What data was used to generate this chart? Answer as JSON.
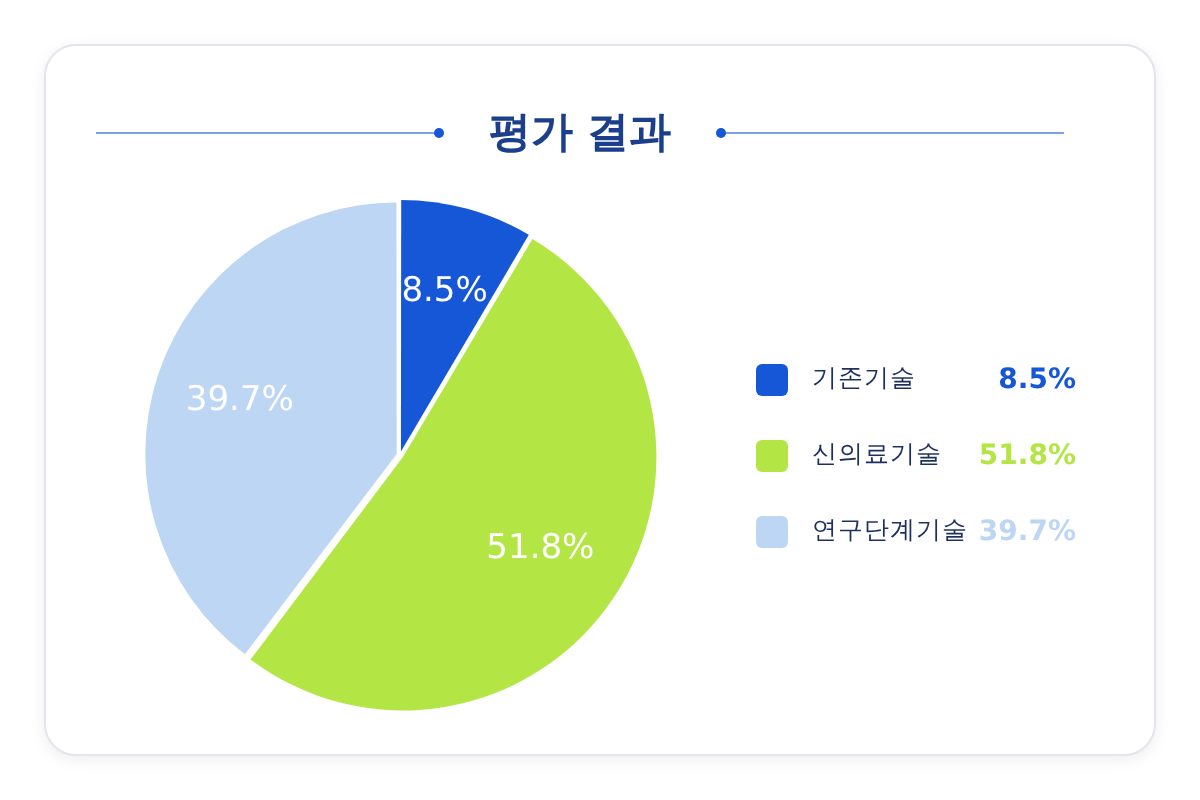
{
  "chart_data": {
    "type": "pie",
    "title": "평가 결과",
    "categories": [
      "기존기술",
      "신의료기술",
      "연구단계기술"
    ],
    "values": [
      8.5,
      51.8,
      39.7
    ],
    "colors": [
      "#1557d6",
      "#b3e645",
      "#bcd6f4"
    ],
    "value_labels": [
      "8.5%",
      "51.8%",
      "39.7%"
    ],
    "legend": "right"
  }
}
